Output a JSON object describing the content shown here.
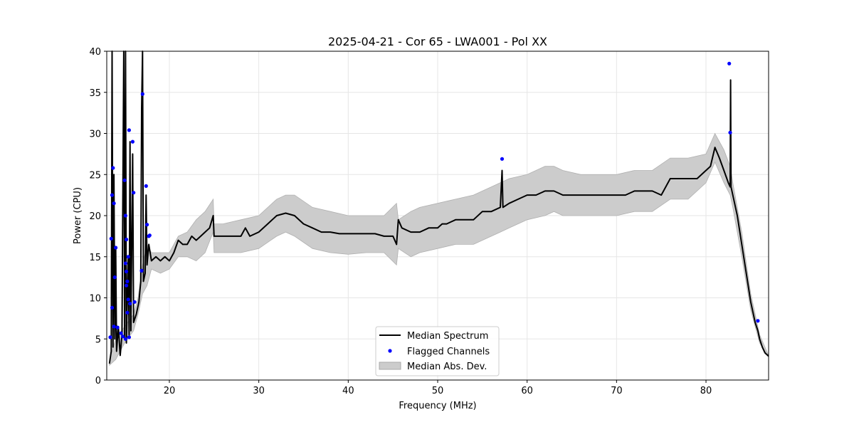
{
  "chart_data": {
    "type": "line",
    "title": "2025-04-21 - Cor 65 - LWA001 - Pol XX",
    "xlabel": "Frequency (MHz)",
    "ylabel": "Power (CPU)",
    "xlim": [
      13,
      87
    ],
    "ylim": [
      0,
      40
    ],
    "xticks": [
      20,
      30,
      40,
      50,
      60,
      70,
      80
    ],
    "yticks": [
      0,
      5,
      10,
      15,
      20,
      25,
      30,
      35,
      40
    ],
    "grid": true,
    "legend_position": "bottom-center",
    "legend": [
      "Median Spectrum",
      "Flagged Channels",
      "Median Abs. Dev."
    ],
    "series": [
      {
        "name": "Median Spectrum",
        "kind": "line",
        "color": "#000000",
        "points": [
          [
            13.3,
            2.0
          ],
          [
            13.5,
            3.5
          ],
          [
            13.6,
            40
          ],
          [
            13.7,
            4
          ],
          [
            13.8,
            25
          ],
          [
            13.9,
            5
          ],
          [
            14.0,
            16
          ],
          [
            14.1,
            3.5
          ],
          [
            14.3,
            6.5
          ],
          [
            14.5,
            3
          ],
          [
            14.7,
            5.5
          ],
          [
            14.9,
            40
          ],
          [
            15.0,
            5
          ],
          [
            15.1,
            40
          ],
          [
            15.2,
            4.5
          ],
          [
            15.4,
            15
          ],
          [
            15.5,
            5.5
          ],
          [
            15.6,
            29
          ],
          [
            15.7,
            6
          ],
          [
            15.9,
            27.5
          ],
          [
            16.0,
            7
          ],
          [
            16.3,
            8
          ],
          [
            16.6,
            9.5
          ],
          [
            16.8,
            12
          ],
          [
            16.9,
            33
          ],
          [
            17.0,
            40
          ],
          [
            17.1,
            12
          ],
          [
            17.3,
            13
          ],
          [
            17.4,
            22.5
          ],
          [
            17.5,
            14
          ],
          [
            17.7,
            16.5
          ],
          [
            18.0,
            14.5
          ],
          [
            18.5,
            15
          ],
          [
            19.0,
            14.5
          ],
          [
            19.5,
            15
          ],
          [
            20.0,
            14.5
          ],
          [
            20.5,
            15.5
          ],
          [
            21.0,
            17
          ],
          [
            21.5,
            16.5
          ],
          [
            22.0,
            16.5
          ],
          [
            22.5,
            17.5
          ],
          [
            23.0,
            17
          ],
          [
            23.5,
            17.5
          ],
          [
            24.0,
            18
          ],
          [
            24.5,
            18.5
          ],
          [
            24.9,
            20
          ],
          [
            25.0,
            17.5
          ],
          [
            26.0,
            17.5
          ],
          [
            27.0,
            17.5
          ],
          [
            28.0,
            17.5
          ],
          [
            28.5,
            18.5
          ],
          [
            29.0,
            17.5
          ],
          [
            30.0,
            18
          ],
          [
            31.0,
            19
          ],
          [
            32.0,
            20
          ],
          [
            33.0,
            20.3
          ],
          [
            34.0,
            20
          ],
          [
            35.0,
            19
          ],
          [
            36.0,
            18.5
          ],
          [
            37.0,
            18
          ],
          [
            38.0,
            18
          ],
          [
            39.0,
            17.8
          ],
          [
            40.0,
            17.8
          ],
          [
            41.0,
            17.8
          ],
          [
            42.0,
            17.8
          ],
          [
            43.0,
            17.8
          ],
          [
            44.0,
            17.5
          ],
          [
            45.0,
            17.5
          ],
          [
            45.4,
            16.5
          ],
          [
            45.6,
            19.5
          ],
          [
            46.0,
            18.5
          ],
          [
            47.0,
            18
          ],
          [
            48.0,
            18
          ],
          [
            49.0,
            18.5
          ],
          [
            50.0,
            18.5
          ],
          [
            50.5,
            19
          ],
          [
            51.0,
            19
          ],
          [
            52.0,
            19.5
          ],
          [
            53.0,
            19.5
          ],
          [
            54.0,
            19.5
          ],
          [
            55.0,
            20.5
          ],
          [
            56.0,
            20.5
          ],
          [
            57.0,
            21
          ],
          [
            57.2,
            25.5
          ],
          [
            57.3,
            21
          ],
          [
            58.0,
            21.5
          ],
          [
            59.0,
            22
          ],
          [
            60.0,
            22.5
          ],
          [
            61.0,
            22.5
          ],
          [
            62.0,
            23
          ],
          [
            63.0,
            23
          ],
          [
            64.0,
            22.5
          ],
          [
            65.0,
            22.5
          ],
          [
            66.0,
            22.5
          ],
          [
            67.0,
            22.5
          ],
          [
            68.0,
            22.5
          ],
          [
            69.0,
            22.5
          ],
          [
            70.0,
            22.5
          ],
          [
            71.0,
            22.5
          ],
          [
            72.0,
            23
          ],
          [
            73.0,
            23
          ],
          [
            74.0,
            23
          ],
          [
            75.0,
            22.5
          ],
          [
            76.0,
            24.5
          ],
          [
            77.0,
            24.5
          ],
          [
            78.0,
            24.5
          ],
          [
            79.0,
            24.5
          ],
          [
            80.0,
            25.5
          ],
          [
            80.5,
            26
          ],
          [
            81.0,
            28.3
          ],
          [
            81.5,
            27
          ],
          [
            82.0,
            25.5
          ],
          [
            82.5,
            24
          ],
          [
            82.7,
            23.5
          ],
          [
            82.75,
            36.5
          ],
          [
            82.8,
            23.5
          ],
          [
            83.0,
            22.5
          ],
          [
            83.5,
            20
          ],
          [
            84.0,
            16.5
          ],
          [
            84.5,
            13
          ],
          [
            85.0,
            9.5
          ],
          [
            85.5,
            7
          ],
          [
            85.8,
            6
          ],
          [
            86.0,
            5
          ],
          [
            86.3,
            4
          ],
          [
            86.6,
            3.3
          ],
          [
            87.0,
            2.9
          ]
        ]
      },
      {
        "name": "Flagged Channels",
        "kind": "scatter",
        "color": "#0000ff",
        "points": [
          [
            13.4,
            5.2
          ],
          [
            13.5,
            17.2
          ],
          [
            13.6,
            22.5
          ],
          [
            13.6,
            8.8
          ],
          [
            13.7,
            25.8
          ],
          [
            13.8,
            21.5
          ],
          [
            13.8,
            6.5
          ],
          [
            13.9,
            12.5
          ],
          [
            14.0,
            16.1
          ],
          [
            14.2,
            6.4
          ],
          [
            14.6,
            5.7
          ],
          [
            14.8,
            5.3
          ],
          [
            15.0,
            24.3
          ],
          [
            15.1,
            20
          ],
          [
            15.1,
            14.2
          ],
          [
            15.2,
            13.2
          ],
          [
            15.2,
            17.1
          ],
          [
            15.3,
            12
          ],
          [
            15.4,
            9.8
          ],
          [
            15.4,
            15
          ],
          [
            15.5,
            30.4
          ],
          [
            15.6,
            9.3
          ],
          [
            15.9,
            29.0
          ],
          [
            16.0,
            22.8
          ],
          [
            16.1,
            9.5
          ],
          [
            15.2,
            11.5
          ],
          [
            15.3,
            8.2
          ],
          [
            15.5,
            5.2
          ],
          [
            15.1,
            5.0
          ],
          [
            16.9,
            13.3
          ],
          [
            17.0,
            34.8
          ],
          [
            17.4,
            23.6
          ],
          [
            17.5,
            18.9
          ],
          [
            17.7,
            17.5
          ],
          [
            17.8,
            17.6
          ],
          [
            57.2,
            26.9
          ],
          [
            82.6,
            38.5
          ],
          [
            82.7,
            30.1
          ],
          [
            85.8,
            7.2
          ]
        ]
      },
      {
        "name": "Median Abs. Dev.",
        "kind": "area",
        "color": "#cccccc",
        "upper": [
          [
            13.3,
            2.5
          ],
          [
            14.0,
            5
          ],
          [
            15.0,
            6.5
          ],
          [
            16.0,
            8
          ],
          [
            16.5,
            10
          ],
          [
            17.0,
            14
          ],
          [
            17.5,
            16.5
          ],
          [
            18.0,
            15.5
          ],
          [
            19.0,
            15.5
          ],
          [
            20.0,
            15.5
          ],
          [
            21.0,
            17.5
          ],
          [
            22.0,
            18.0
          ],
          [
            23.0,
            19.5
          ],
          [
            24.0,
            20.5
          ],
          [
            24.9,
            22
          ],
          [
            25.0,
            19
          ],
          [
            26.0,
            19
          ],
          [
            28.0,
            19.5
          ],
          [
            30.0,
            20
          ],
          [
            32.0,
            22
          ],
          [
            33.0,
            22.5
          ],
          [
            34.0,
            22.5
          ],
          [
            36.0,
            21
          ],
          [
            38.0,
            20.5
          ],
          [
            40.0,
            20
          ],
          [
            42.0,
            20
          ],
          [
            44.0,
            20
          ],
          [
            45.4,
            21.5
          ],
          [
            45.6,
            19.5
          ],
          [
            47.0,
            20.5
          ],
          [
            48.0,
            21
          ],
          [
            50.0,
            21.5
          ],
          [
            52.0,
            22
          ],
          [
            54.0,
            22.5
          ],
          [
            55.0,
            23
          ],
          [
            56.0,
            23.5
          ],
          [
            57.0,
            24
          ],
          [
            58.0,
            24.5
          ],
          [
            60.0,
            25
          ],
          [
            62.0,
            26
          ],
          [
            63.0,
            26
          ],
          [
            64.0,
            25.5
          ],
          [
            66.0,
            25
          ],
          [
            68.0,
            25
          ],
          [
            70.0,
            25
          ],
          [
            72.0,
            25.5
          ],
          [
            74.0,
            25.5
          ],
          [
            76.0,
            27
          ],
          [
            78.0,
            27
          ],
          [
            80.0,
            27.5
          ],
          [
            81.0,
            30
          ],
          [
            82.0,
            28
          ],
          [
            82.7,
            26
          ],
          [
            83.0,
            24
          ],
          [
            84.0,
            18
          ],
          [
            85.0,
            10.5
          ],
          [
            86.0,
            5.5
          ],
          [
            87.0,
            3
          ]
        ],
        "lower": [
          [
            87.0,
            2.8
          ],
          [
            86.0,
            4.5
          ],
          [
            85.0,
            8.5
          ],
          [
            84.0,
            15
          ],
          [
            83.0,
            21
          ],
          [
            82.7,
            22.5
          ],
          [
            82.0,
            24
          ],
          [
            81.0,
            26.5
          ],
          [
            80.0,
            24
          ],
          [
            78.0,
            22
          ],
          [
            76.0,
            22
          ],
          [
            74.0,
            20.5
          ],
          [
            72.0,
            20.5
          ],
          [
            70.0,
            20
          ],
          [
            68.0,
            20
          ],
          [
            66.0,
            20
          ],
          [
            64.0,
            20
          ],
          [
            63.0,
            20.5
          ],
          [
            62.0,
            20
          ],
          [
            60.0,
            19.5
          ],
          [
            58.0,
            18.5
          ],
          [
            57.0,
            18
          ],
          [
            56.0,
            17.5
          ],
          [
            55.0,
            17
          ],
          [
            54.0,
            16.5
          ],
          [
            52.0,
            16.5
          ],
          [
            50.0,
            16
          ],
          [
            48.0,
            15.5
          ],
          [
            47.0,
            15
          ],
          [
            45.6,
            16
          ],
          [
            45.4,
            14
          ],
          [
            44.0,
            15.5
          ],
          [
            42.0,
            15.5
          ],
          [
            40.0,
            15.3
          ],
          [
            38.0,
            15.5
          ],
          [
            36.0,
            16
          ],
          [
            34.0,
            17.5
          ],
          [
            33.0,
            18
          ],
          [
            32.0,
            17.5
          ],
          [
            30.0,
            16
          ],
          [
            28.0,
            15.5
          ],
          [
            26.0,
            15.5
          ],
          [
            25.0,
            15.5
          ],
          [
            24.9,
            18
          ],
          [
            24.0,
            15.5
          ],
          [
            23.0,
            14.5
          ],
          [
            22.0,
            15
          ],
          [
            21.0,
            15
          ],
          [
            20.0,
            13.5
          ],
          [
            19.0,
            13
          ],
          [
            18.0,
            13.5
          ],
          [
            17.5,
            11.5
          ],
          [
            17.0,
            10.5
          ],
          [
            16.5,
            8
          ],
          [
            16.0,
            6
          ],
          [
            15.0,
            4.5
          ],
          [
            14.0,
            2.5
          ],
          [
            13.3,
            1.8
          ]
        ]
      }
    ]
  }
}
